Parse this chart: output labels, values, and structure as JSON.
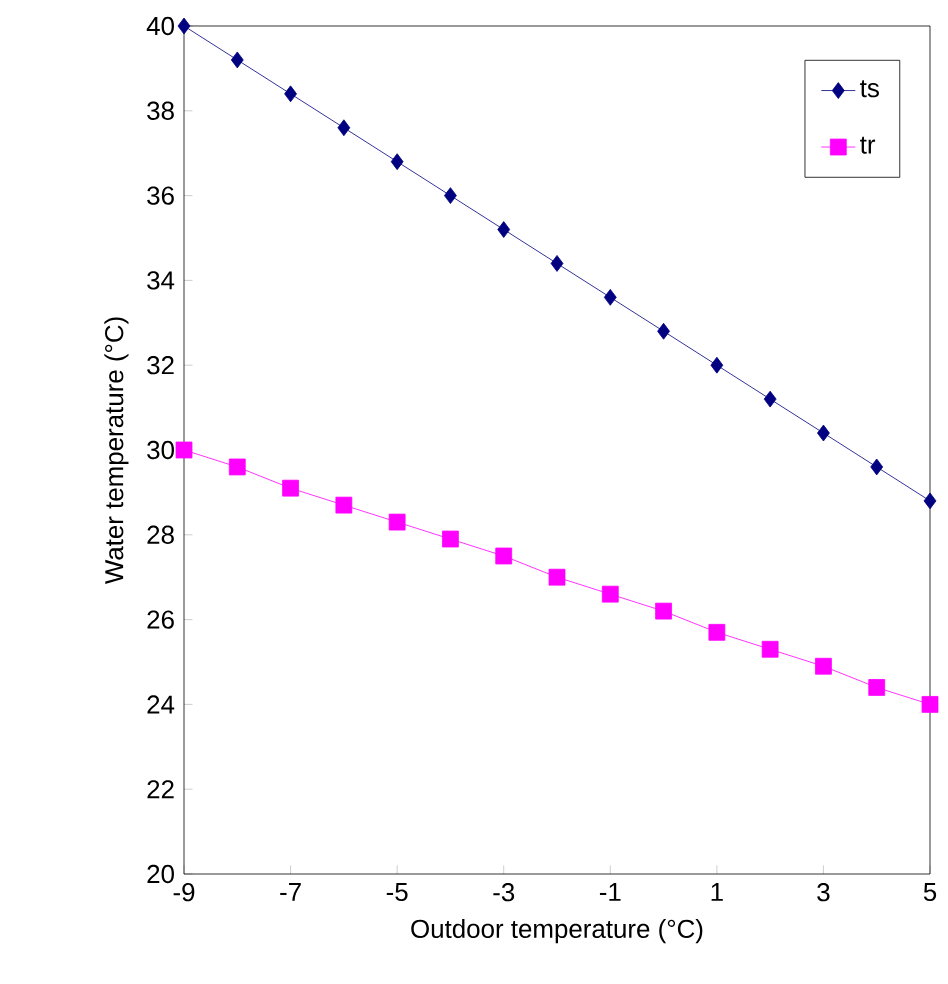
{
  "chart_data": {
    "type": "line",
    "xlabel": "Outdoor temperature (°C)",
    "ylabel": "Water temperature  (°C)",
    "x": [
      -9,
      -8,
      -7,
      -6,
      -5,
      -4,
      -3,
      -2,
      -1,
      0,
      1,
      2,
      3,
      4,
      5
    ],
    "series": [
      {
        "name": "ts",
        "color": "#000080",
        "marker": "diamond",
        "values": [
          40,
          39.2,
          38.4,
          37.6,
          36.8,
          36.0,
          35.2,
          34.4,
          33.6,
          32.8,
          32.0,
          31.2,
          30.4,
          29.6,
          28.8
        ]
      },
      {
        "name": "tr",
        "color": "#ff00ff",
        "marker": "square",
        "values": [
          30,
          29.6,
          29.1,
          28.7,
          28.3,
          27.9,
          27.5,
          27.0,
          26.6,
          26.2,
          25.7,
          25.3,
          24.9,
          24.4,
          24.0
        ]
      }
    ],
    "xlim": [
      -9,
      5
    ],
    "xticks": [
      -9,
      -7,
      -5,
      -3,
      -1,
      1,
      3,
      5
    ],
    "ylim": [
      20,
      40
    ],
    "yticks": [
      20,
      22,
      24,
      26,
      28,
      30,
      32,
      34,
      36,
      38,
      40
    ],
    "grid": false,
    "legend": "top right",
    "line_style": "solid"
  }
}
